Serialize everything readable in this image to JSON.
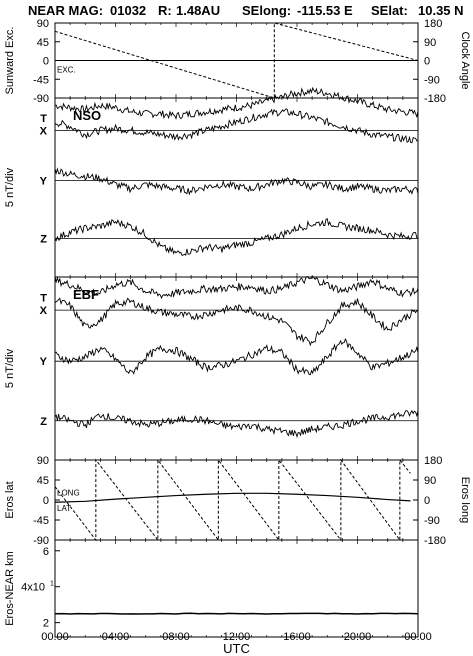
{
  "header": {
    "mission": "NEAR MAG:",
    "doy": "01032",
    "r_label": "R:",
    "r_value": "1.48AU",
    "selong_label": "SElong:",
    "selong_value": "-115.53 E",
    "selat_label": "SElat:",
    "selat_value": "10.35 N"
  },
  "colors": {
    "line": "#000000",
    "grid": "#888888",
    "background": "#ffffff"
  },
  "chart_data": [
    {
      "type": "line",
      "panel": "sunward-clock",
      "ylabel_left": "Sunward Exc.",
      "ylabel_right": "Clock Angle",
      "yticks_left": [
        "90",
        "45",
        "0",
        "-45",
        "-90"
      ],
      "yticks_right": [
        "180",
        "90",
        "0",
        "-90",
        "-180"
      ],
      "ylim": [
        -90,
        90
      ],
      "annotations": [
        "EXC."
      ],
      "series": [
        {
          "name": "EXC.",
          "style": "solid",
          "x": [
            0,
            24
          ],
          "y": [
            0,
            0
          ]
        },
        {
          "style": "dashed",
          "axis": "right",
          "x": [
            0,
            14.5,
            14.5,
            24
          ],
          "y": [
            140,
            -180,
            180,
            0
          ]
        }
      ]
    },
    {
      "type": "line",
      "panel": "NSO",
      "panel_label": "NSO",
      "ylabel": "5 nT/div",
      "series": [
        {
          "name": "T",
          "offset": 3.0,
          "x": [
            0,
            1,
            2,
            3,
            4,
            5,
            6,
            7,
            8,
            9,
            10,
            11,
            12,
            13,
            14,
            15,
            16,
            17,
            18,
            19,
            20,
            21,
            22,
            23,
            24
          ],
          "y": [
            0.6,
            0.5,
            0.4,
            0.6,
            0.5,
            0.3,
            0.2,
            0.2,
            0.1,
            0.2,
            0.3,
            0.4,
            0.5,
            0.6,
            0.8,
            1.0,
            1.2,
            1.3,
            1.2,
            1.0,
            0.8,
            0.6,
            0.4,
            0.3,
            0.2
          ]
        },
        {
          "name": "X",
          "offset": 2.4,
          "x": [
            0,
            1,
            2,
            3,
            4,
            5,
            6,
            7,
            8,
            9,
            10,
            11,
            12,
            13,
            14,
            15,
            16,
            17,
            18,
            19,
            20,
            21,
            22,
            23,
            24
          ],
          "y": [
            0.4,
            0.2,
            -0.2,
            0.0,
            0.1,
            0.0,
            -0.1,
            -0.2,
            -0.3,
            -0.2,
            0.0,
            0.2,
            0.4,
            0.6,
            0.8,
            0.9,
            0.8,
            0.6,
            0.4,
            0.2,
            0.0,
            -0.2,
            -0.3,
            -0.4,
            -0.5
          ]
        },
        {
          "name": "Y",
          "offset": 0.0,
          "x": [
            0,
            1,
            2,
            3,
            4,
            5,
            6,
            7,
            8,
            9,
            10,
            11,
            12,
            13,
            14,
            15,
            16,
            17,
            18,
            19,
            20,
            21,
            22,
            23,
            24
          ],
          "y": [
            0.5,
            0.3,
            0.2,
            0.1,
            -0.2,
            -0.4,
            -0.2,
            -0.3,
            -0.4,
            -0.5,
            -0.3,
            -0.2,
            -0.3,
            -0.4,
            -0.2,
            0.0,
            -0.1,
            -0.3,
            -0.2,
            -0.4,
            -0.3,
            -0.4,
            -0.5,
            -0.4,
            -0.5
          ]
        },
        {
          "name": "Z",
          "offset": -2.8,
          "x": [
            0,
            1,
            2,
            3,
            4,
            5,
            6,
            7,
            8,
            9,
            10,
            11,
            12,
            13,
            14,
            15,
            16,
            17,
            18,
            19,
            20,
            21,
            22,
            23,
            24
          ],
          "y": [
            0.0,
            0.3,
            0.5,
            0.6,
            0.8,
            0.6,
            0.2,
            -0.4,
            -0.7,
            -0.6,
            -0.4,
            -0.5,
            -0.3,
            -0.2,
            0.0,
            0.2,
            0.5,
            0.7,
            0.8,
            0.6,
            0.5,
            0.4,
            0.2,
            0.1,
            0.2
          ]
        }
      ]
    },
    {
      "type": "line",
      "panel": "EBF",
      "panel_label": "EBF",
      "ylabel": "5 nT/div",
      "series": [
        {
          "name": "T",
          "offset": 3.0,
          "x": [
            0,
            1,
            2,
            3,
            4,
            5,
            6,
            7,
            8,
            9,
            10,
            11,
            12,
            13,
            14,
            15,
            16,
            17,
            18,
            19,
            20,
            21,
            22,
            23,
            24
          ],
          "y": [
            0.8,
            0.6,
            0.3,
            0.2,
            0.6,
            0.7,
            0.3,
            0.1,
            0.2,
            0.3,
            0.4,
            0.4,
            0.5,
            0.5,
            0.3,
            0.4,
            0.7,
            0.9,
            0.6,
            0.3,
            0.5,
            0.8,
            0.4,
            0.2,
            0.3
          ]
        },
        {
          "name": "X",
          "offset": 2.4,
          "x": [
            0,
            1,
            2,
            3,
            4,
            5,
            6,
            7,
            8,
            9,
            10,
            11,
            12,
            13,
            14,
            15,
            16,
            17,
            18,
            19,
            20,
            21,
            22,
            23,
            24
          ],
          "y": [
            0.5,
            0.2,
            -0.8,
            -0.5,
            0.3,
            0.4,
            0.1,
            -0.1,
            -0.2,
            -0.3,
            -0.2,
            0.0,
            0.1,
            0.0,
            -0.3,
            -0.5,
            -1.2,
            -1.5,
            -0.6,
            0.2,
            0.4,
            -0.3,
            -0.9,
            -0.4,
            0.0
          ]
        },
        {
          "name": "Y",
          "offset": 0.0,
          "x": [
            0,
            1,
            2,
            3,
            4,
            5,
            6,
            7,
            8,
            9,
            10,
            11,
            12,
            13,
            14,
            15,
            16,
            17,
            18,
            19,
            20,
            21,
            22,
            23,
            24
          ],
          "y": [
            0.3,
            0.0,
            0.2,
            0.6,
            0.1,
            -0.6,
            0.2,
            0.6,
            0.5,
            0.1,
            -0.3,
            -0.2,
            0.0,
            0.3,
            0.6,
            0.4,
            -0.4,
            -0.6,
            0.2,
            1.0,
            0.4,
            -0.3,
            -0.1,
            0.2,
            0.5
          ]
        },
        {
          "name": "Z",
          "offset": -2.8,
          "x": [
            0,
            1,
            2,
            3,
            4,
            5,
            6,
            7,
            8,
            9,
            10,
            11,
            12,
            13,
            14,
            15,
            16,
            17,
            18,
            19,
            20,
            21,
            22,
            23,
            24
          ],
          "y": [
            0.2,
            0.0,
            -0.2,
            0.3,
            0.1,
            0.0,
            -0.2,
            -0.1,
            0.0,
            0.1,
            0.0,
            -0.2,
            -0.3,
            -0.2,
            -0.4,
            -0.5,
            -0.6,
            -0.4,
            -0.3,
            -0.2,
            0.0,
            0.1,
            0.2,
            0.3,
            0.4
          ]
        }
      ]
    },
    {
      "type": "line",
      "panel": "eros-lat-long",
      "ylabel_left": "Eros lat",
      "ylabel_right": "Eros long",
      "yticks_left": [
        "90",
        "45",
        "0",
        "-45",
        "-90"
      ],
      "yticks_right": [
        "180",
        "90",
        "0",
        "-90",
        "-180"
      ],
      "ylim": [
        -90,
        90
      ],
      "annotations": [
        "LONG",
        "LAT"
      ],
      "series": [
        {
          "name": "LAT",
          "style": "solid",
          "x": [
            0,
            2,
            4,
            6,
            8,
            10,
            12,
            14,
            16,
            18,
            20,
            22,
            23.5
          ],
          "y": [
            -5,
            -3,
            2,
            6,
            10,
            13,
            15,
            15,
            13,
            10,
            6,
            1,
            -2
          ]
        },
        {
          "name": "LONG",
          "style": "dashed",
          "axis": "right",
          "x": [
            0,
            2.7,
            2.7,
            6.8,
            6.8,
            10.8,
            10.8,
            14.8,
            14.8,
            18.9,
            18.9,
            22.8,
            22.8,
            23.5
          ],
          "y": [
            60,
            -180,
            180,
            -180,
            180,
            -180,
            180,
            -180,
            180,
            -180,
            180,
            -180,
            180,
            120
          ]
        }
      ]
    },
    {
      "type": "line",
      "panel": "eros-near-distance",
      "ylabel": "Eros-NEAR km",
      "ytick_labels": [
        "6",
        "4x10",
        "2"
      ],
      "ytick_exponent": "1",
      "series": [
        {
          "name": "distance",
          "style": "solid",
          "x": [
            0,
            6,
            12,
            18,
            24
          ],
          "y": [
            25,
            25,
            25,
            25,
            25
          ]
        }
      ]
    }
  ],
  "x_axis": {
    "label": "UTC",
    "ticks": [
      "00:00",
      "04:00",
      "08:00",
      "12:00",
      "16:00",
      "20:00",
      "00:00"
    ]
  }
}
